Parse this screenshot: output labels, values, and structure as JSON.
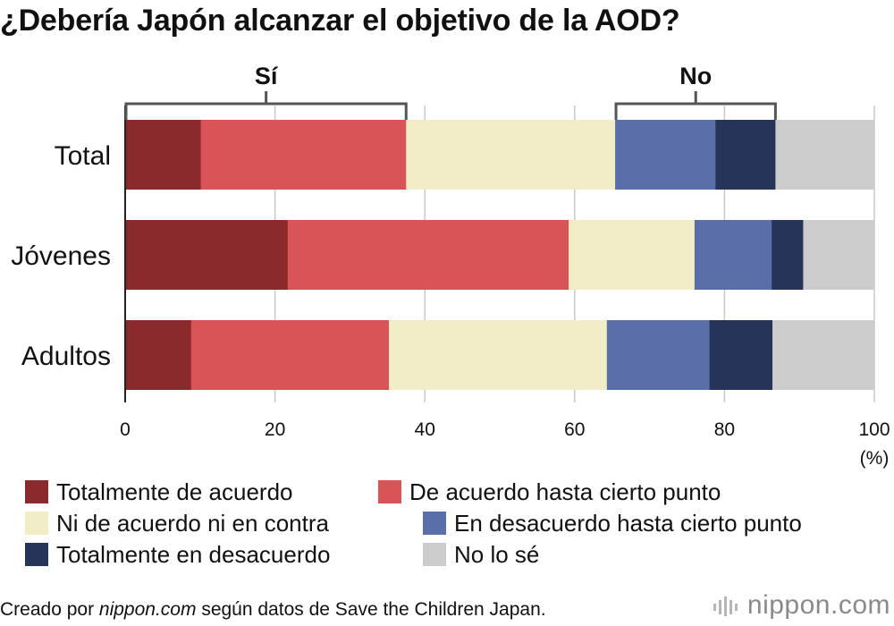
{
  "title": "¿Debería Japón alcanzar el objetivo de la AOD?",
  "chart_data": {
    "type": "bar",
    "orientation": "horizontal",
    "stacked": true,
    "categories": [
      "Total",
      "Jóvenes",
      "Adultos"
    ],
    "series": [
      {
        "name": "Totalmente de acuerdo",
        "color": "#8b2a2c",
        "values": [
          10.1,
          21.7,
          8.8
        ]
      },
      {
        "name": "De acuerdo hasta cierto punto",
        "color": "#d95457",
        "values": [
          27.4,
          37.5,
          26.4
        ]
      },
      {
        "name": "Ni de acuerdo ni en contra",
        "color": "#f2edc6",
        "values": [
          27.9,
          16.8,
          29.1
        ]
      },
      {
        "name": "En desacuerdo hasta cierto punto",
        "color": "#5a6fa9",
        "values": [
          13.4,
          10.3,
          13.7
        ]
      },
      {
        "name": "Totalmente en desacuerdo",
        "color": "#263459",
        "values": [
          8.0,
          4.2,
          8.4
        ]
      },
      {
        "name": "No lo sé",
        "color": "#cccccc",
        "values": [
          13.2,
          9.5,
          13.6
        ]
      }
    ],
    "xlim": [
      0,
      100
    ],
    "xticks": [
      "0",
      "20",
      "40",
      "60",
      "80",
      "100"
    ],
    "xlabel": "(%)",
    "brackets": [
      {
        "label": "Sí",
        "from": 0,
        "to": 37.5
      },
      {
        "label": "No",
        "from": 65.4,
        "to": 86.8
      }
    ],
    "grid": true
  },
  "footer": {
    "prefix": "Creado por ",
    "site": "nippon.com",
    "suffix": " según datos de Save the Children Japan."
  },
  "brand": "nippon.com"
}
